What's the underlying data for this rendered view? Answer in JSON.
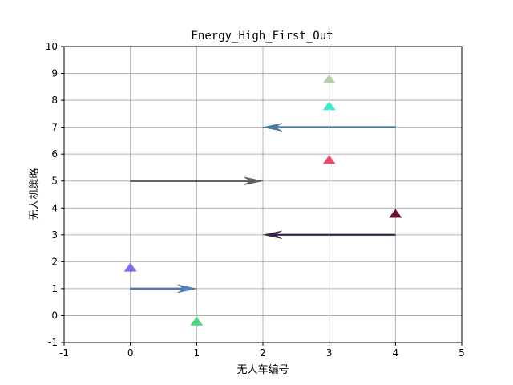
{
  "chart_data": {
    "type": "quiver",
    "title": "Energy_High_First_Out",
    "xlabel": "无人车编号",
    "ylabel": "无人机策略",
    "xlim": [
      -1,
      5
    ],
    "ylim": [
      -1,
      10
    ],
    "xticks": [
      "-1",
      "0",
      "1",
      "2",
      "3",
      "4",
      "5"
    ],
    "yticks": [
      "-1",
      "0",
      "1",
      "2",
      "3",
      "4",
      "5",
      "6",
      "7",
      "8",
      "9",
      "10"
    ],
    "grid": true,
    "arrows": [
      {
        "x": 4,
        "y": 7,
        "dx": -2,
        "dy": 0,
        "color": "#3b7dab"
      },
      {
        "x": 0,
        "y": 5,
        "dx": 2,
        "dy": 0,
        "color": "#5a6657"
      },
      {
        "x": 4,
        "y": 3,
        "dx": -2,
        "dy": 0,
        "color": "#3c1f4f"
      },
      {
        "x": 0,
        "y": 1,
        "dx": 1,
        "dy": 0,
        "color": "#4b83d0"
      }
    ],
    "markers": [
      {
        "x": 3,
        "y": 8.8,
        "color": "#b3cfa8"
      },
      {
        "x": 3,
        "y": 7.8,
        "color": "#3ee8c9"
      },
      {
        "x": 3,
        "y": 5.8,
        "color": "#e84a6e"
      },
      {
        "x": 4,
        "y": 3.8,
        "color": "#6b1030"
      },
      {
        "x": 0,
        "y": 1.8,
        "color": "#7b6ee6"
      },
      {
        "x": 1,
        "y": -0.2,
        "color": "#4fd67d"
      }
    ]
  }
}
